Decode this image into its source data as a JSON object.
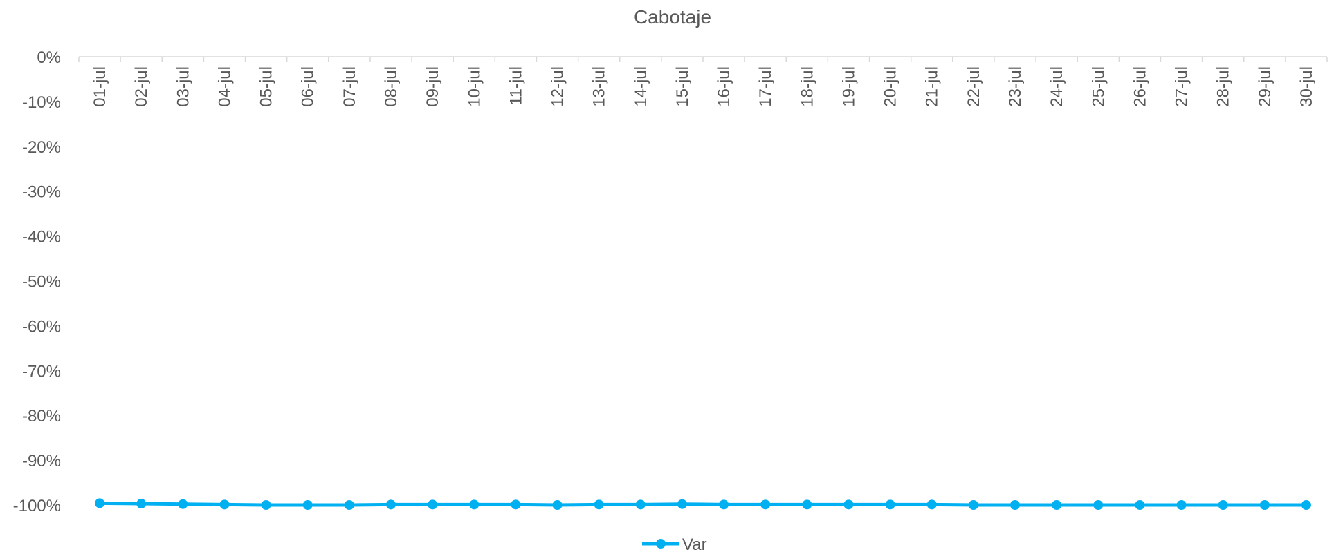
{
  "chart_data": {
    "type": "line",
    "title": "Cabotaje",
    "xlabel": "",
    "ylabel": "",
    "categories": [
      "01-jul",
      "02-jul",
      "03-jul",
      "04-jul",
      "05-jul",
      "06-jul",
      "07-jul",
      "08-jul",
      "09-jul",
      "10-jul",
      "11-jul",
      "12-jul",
      "13-jul",
      "14-jul",
      "15-jul",
      "16-jul",
      "17-jul",
      "18-jul",
      "19-jul",
      "20-jul",
      "21-jul",
      "22-jul",
      "23-jul",
      "24-jul",
      "25-jul",
      "26-jul",
      "27-jul",
      "28-jul",
      "29-jul",
      "30-jul"
    ],
    "series": [
      {
        "name": "Var",
        "color": "#00B0F0",
        "values": [
          -99.6,
          -99.7,
          -99.8,
          -99.9,
          -100.0,
          -100.0,
          -100.0,
          -99.9,
          -99.9,
          -99.9,
          -99.9,
          -100.0,
          -99.9,
          -99.9,
          -99.8,
          -99.9,
          -99.9,
          -99.9,
          -99.9,
          -99.9,
          -99.9,
          -100.0,
          -100.0,
          -100.0,
          -100.0,
          -100.0,
          -100.0,
          -100.0,
          -100.0,
          -100.0
        ]
      }
    ],
    "ylim": [
      -100,
      0
    ],
    "yticks": [
      "0%",
      "-10%",
      "-20%",
      "-30%",
      "-40%",
      "-50%",
      "-60%",
      "-70%",
      "-80%",
      "-90%",
      "-100%"
    ],
    "x_axis_position": "top",
    "x_tick_rotation": "vertical",
    "grid": false,
    "legend_position": "bottom-center"
  }
}
